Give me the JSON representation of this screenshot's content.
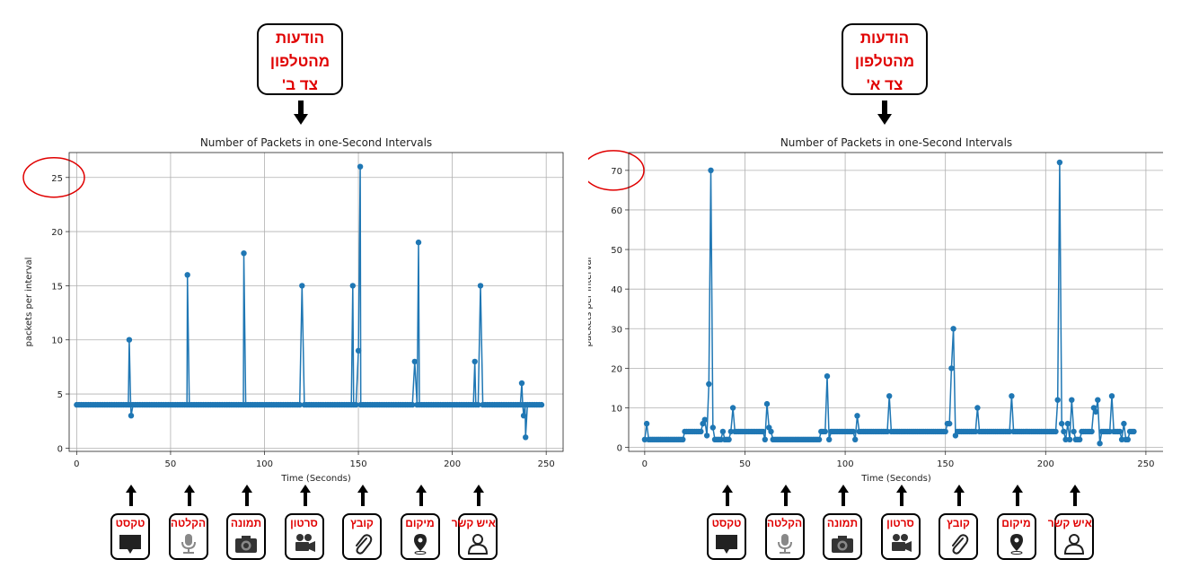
{
  "panels": [
    {
      "callout_lines": [
        "הודעות",
        "מהטלפון",
        "צד ב'"
      ],
      "chart": {
        "type": "line",
        "title": "Number of Packets in one-Second Intervals",
        "xlabel": "Time (Seconds)",
        "ylabel": "packets per interval",
        "xlim": [
          -4,
          259
        ],
        "ylim": [
          -0.3,
          27.3
        ],
        "xticks": [
          0,
          50,
          100,
          150,
          200,
          250
        ],
        "yticks": [
          0,
          5,
          10,
          15,
          20,
          25
        ],
        "grid": true,
        "highlighted_tick": "25",
        "line_color": "#1f77b4",
        "spikes": [
          [
            28,
            10
          ],
          [
            29,
            3
          ],
          [
            59,
            16
          ],
          [
            89,
            18
          ],
          [
            120,
            15
          ],
          [
            147,
            15
          ],
          [
            150,
            9
          ],
          [
            151,
            26
          ],
          [
            180,
            8
          ],
          [
            182,
            19
          ],
          [
            212,
            8
          ],
          [
            215,
            15
          ],
          [
            237,
            6
          ],
          [
            238,
            3
          ],
          [
            239,
            1
          ]
        ],
        "base_value": 4,
        "x_end": 248
      }
    },
    {
      "callout_lines": [
        "הודעות",
        "מהטלפון",
        "צד א'"
      ],
      "chart": {
        "type": "line",
        "title": "Number of Packets in one-Second Intervals",
        "xlabel": "Time (Seconds)",
        "ylabel": "packets per interval",
        "xlim": [
          -8,
          259
        ],
        "ylim": [
          -1,
          74.5
        ],
        "xticks": [
          0,
          50,
          100,
          150,
          200,
          250
        ],
        "yticks": [
          0,
          10,
          20,
          30,
          40,
          50,
          60,
          70
        ],
        "grid": true,
        "highlighted_tick": "70",
        "line_color": "#1f77b4",
        "segments": [
          [
            0,
            2
          ],
          [
            1,
            6
          ],
          [
            2,
            2
          ],
          [
            19,
            2
          ],
          [
            20,
            4
          ],
          [
            28,
            4
          ],
          [
            29,
            6
          ],
          [
            30,
            7
          ],
          [
            31,
            3
          ],
          [
            32,
            16
          ],
          [
            33,
            70
          ],
          [
            34,
            5
          ],
          [
            35,
            2
          ],
          [
            38,
            2
          ],
          [
            39,
            4
          ],
          [
            40,
            2
          ],
          [
            42,
            2
          ],
          [
            43,
            4
          ],
          [
            44,
            10
          ],
          [
            45,
            4
          ],
          [
            59,
            4
          ],
          [
            60,
            2
          ],
          [
            61,
            11
          ],
          [
            62,
            5
          ],
          [
            63,
            4
          ],
          [
            64,
            2
          ],
          [
            87,
            2
          ],
          [
            88,
            4
          ],
          [
            90,
            4
          ],
          [
            91,
            18
          ],
          [
            92,
            2
          ],
          [
            93,
            4
          ],
          [
            104,
            4
          ],
          [
            105,
            2
          ],
          [
            106,
            8
          ],
          [
            107,
            4
          ],
          [
            121,
            4
          ],
          [
            122,
            13
          ],
          [
            123,
            4
          ],
          [
            150,
            4
          ],
          [
            151,
            6
          ],
          [
            152,
            6
          ],
          [
            153,
            20
          ],
          [
            154,
            30
          ],
          [
            155,
            3
          ],
          [
            156,
            4
          ],
          [
            165,
            4
          ],
          [
            166,
            10
          ],
          [
            167,
            4
          ],
          [
            182,
            4
          ],
          [
            183,
            13
          ],
          [
            184,
            4
          ],
          [
            205,
            4
          ],
          [
            206,
            12
          ],
          [
            207,
            72
          ],
          [
            208,
            6
          ],
          [
            209,
            4
          ],
          [
            210,
            2
          ],
          [
            211,
            6
          ],
          [
            212,
            2
          ],
          [
            213,
            12
          ],
          [
            214,
            4
          ],
          [
            215,
            2
          ],
          [
            217,
            2
          ],
          [
            218,
            4
          ],
          [
            223,
            4
          ],
          [
            224,
            10
          ],
          [
            225,
            9
          ],
          [
            226,
            12
          ],
          [
            227,
            1
          ],
          [
            228,
            4
          ],
          [
            232,
            4
          ],
          [
            233,
            13
          ],
          [
            234,
            4
          ],
          [
            237,
            4
          ],
          [
            238,
            2
          ],
          [
            239,
            6
          ],
          [
            240,
            2
          ],
          [
            241,
            2
          ],
          [
            242,
            4
          ],
          [
            244,
            4
          ]
        ]
      }
    }
  ],
  "chart_data": [
    {
      "type": "line",
      "title": "Number of Packets in one-Second Intervals",
      "xlabel": "Time (Seconds)",
      "ylabel": "packets per interval",
      "xlim": [
        -4,
        259
      ],
      "ylim": [
        -0.3,
        27.3
      ],
      "baseline": 4,
      "peaks": [
        [
          28,
          10
        ],
        [
          29,
          3
        ],
        [
          59,
          16
        ],
        [
          89,
          18
        ],
        [
          120,
          15
        ],
        [
          147,
          15
        ],
        [
          150,
          9
        ],
        [
          151,
          26
        ],
        [
          180,
          8
        ],
        [
          182,
          19
        ],
        [
          212,
          8
        ],
        [
          215,
          15
        ],
        [
          237,
          6
        ],
        [
          238,
          3
        ],
        [
          239,
          1
        ]
      ]
    },
    {
      "type": "line",
      "title": "Number of Packets in one-Second Intervals",
      "xlabel": "Time (Seconds)",
      "ylabel": "packets per interval",
      "xlim": [
        -8,
        259
      ],
      "ylim": [
        -1,
        74.5
      ],
      "peaks": [
        [
          1,
          6
        ],
        [
          32,
          16
        ],
        [
          33,
          70
        ],
        [
          44,
          10
        ],
        [
          61,
          11
        ],
        [
          91,
          18
        ],
        [
          106,
          8
        ],
        [
          122,
          13
        ],
        [
          153,
          20
        ],
        [
          154,
          30
        ],
        [
          166,
          10
        ],
        [
          183,
          13
        ],
        [
          206,
          12
        ],
        [
          207,
          72
        ],
        [
          213,
          12
        ],
        [
          224,
          10
        ],
        [
          226,
          12
        ],
        [
          233,
          13
        ],
        [
          239,
          6
        ]
      ]
    }
  ],
  "icons": [
    {
      "label": "טקסט",
      "icon": "message-icon"
    },
    {
      "label": "הקלטה",
      "icon": "microphone-icon"
    },
    {
      "label": "תמונה",
      "icon": "camera-icon"
    },
    {
      "label": "סרטון",
      "icon": "video-camera-icon"
    },
    {
      "label": "קובץ",
      "icon": "paperclip-icon"
    },
    {
      "label": "מיקום",
      "icon": "location-pin-icon"
    },
    {
      "label": "איש קשר",
      "icon": "contact-icon"
    }
  ]
}
